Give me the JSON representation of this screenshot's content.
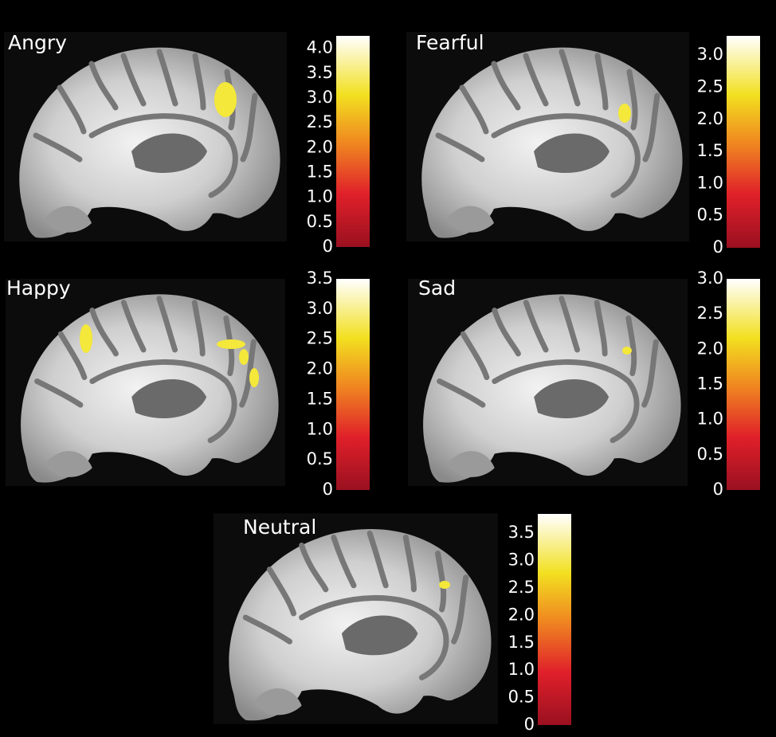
{
  "panels": [
    {
      "label": "Angry",
      "colorbar": {
        "lim": [
          0,
          4.25
        ],
        "ticks": [
          {
            "value": 0,
            "label": "0"
          },
          {
            "value": 0.5,
            "label": "0.5"
          },
          {
            "value": 1,
            "label": "1.0"
          },
          {
            "value": 1.5,
            "label": "1.5"
          },
          {
            "value": 2,
            "label": "2.0"
          },
          {
            "value": 2.5,
            "label": "2.5"
          },
          {
            "value": 3,
            "label": "3.0"
          },
          {
            "value": 3.5,
            "label": "3.5"
          },
          {
            "value": 4,
            "label": "4.0"
          }
        ]
      }
    },
    {
      "label": "Fearful",
      "colorbar": {
        "lim": [
          0,
          3.3
        ],
        "ticks": [
          {
            "value": 0,
            "label": "0"
          },
          {
            "value": 0.5,
            "label": "0.5"
          },
          {
            "value": 1,
            "label": "1.0"
          },
          {
            "value": 1.5,
            "label": "1.5"
          },
          {
            "value": 2,
            "label": "2.0"
          },
          {
            "value": 2.5,
            "label": "2.5"
          },
          {
            "value": 3,
            "label": "3.0"
          }
        ]
      }
    },
    {
      "label": "Happy",
      "colorbar": {
        "lim": [
          0,
          3.5
        ],
        "ticks": [
          {
            "value": 0,
            "label": "0"
          },
          {
            "value": 0.5,
            "label": "0.5"
          },
          {
            "value": 1,
            "label": "1.0"
          },
          {
            "value": 1.5,
            "label": "1.5"
          },
          {
            "value": 2,
            "label": "2.0"
          },
          {
            "value": 2.5,
            "label": "2.5"
          },
          {
            "value": 3,
            "label": "3.0"
          },
          {
            "value": 3.5,
            "label": "3.5"
          }
        ]
      }
    },
    {
      "label": "Sad",
      "colorbar": {
        "lim": [
          0,
          3
        ],
        "ticks": [
          {
            "value": 0,
            "label": "0"
          },
          {
            "value": 0.5,
            "label": "0.5"
          },
          {
            "value": 1,
            "label": "1.0"
          },
          {
            "value": 1.5,
            "label": "1.5"
          },
          {
            "value": 2,
            "label": "2.0"
          },
          {
            "value": 2.5,
            "label": "2.5"
          },
          {
            "value": 3,
            "label": "3.0"
          }
        ]
      }
    },
    {
      "label": "Neutral",
      "colorbar": {
        "lim": [
          0,
          3.85
        ],
        "ticks": [
          {
            "value": 0,
            "label": "0"
          },
          {
            "value": 0.5,
            "label": "0.5"
          },
          {
            "value": 1,
            "label": "1.0"
          },
          {
            "value": 1.5,
            "label": "1.5"
          },
          {
            "value": 2,
            "label": "2.0"
          },
          {
            "value": 2.5,
            "label": "2.5"
          },
          {
            "value": 3,
            "label": "3.0"
          },
          {
            "value": 3.5,
            "label": "3.5"
          }
        ]
      }
    }
  ]
}
